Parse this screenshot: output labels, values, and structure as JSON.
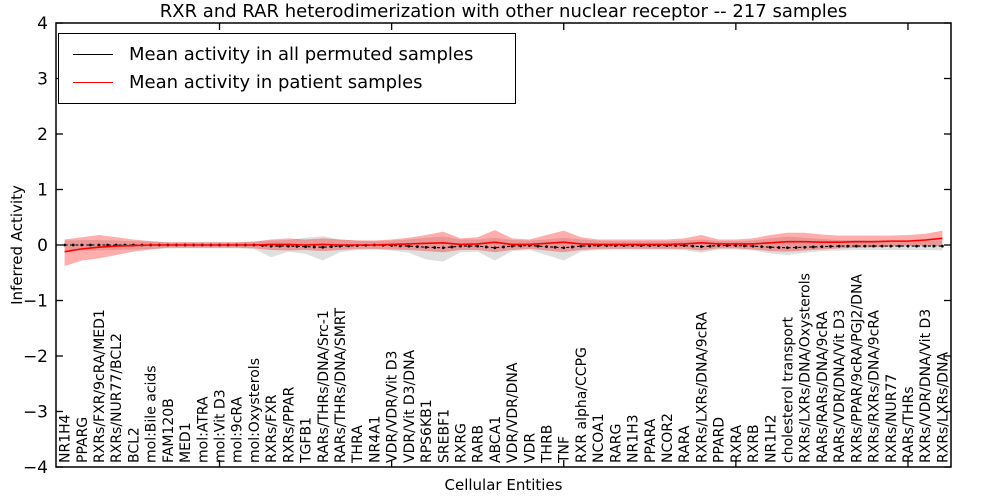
{
  "title": "RXR and RAR heterodimerization with other nuclear receptor -- 217 samples",
  "axes": {
    "xlabel": "Cellular Entities",
    "ylabel": "Inferred Activity"
  },
  "legend": {
    "entries": [
      {
        "label": "Mean activity in all permuted samples",
        "color": "#000000"
      },
      {
        "label": "Mean activity in patient samples",
        "color": "#ff0000"
      }
    ]
  },
  "chart_data": {
    "type": "line",
    "title": "RXR and RAR heterodimerization with other nuclear receptor -- 217 samples",
    "xlabel": "Cellular Entities",
    "ylabel": "Inferred Activity",
    "samples_count": "217",
    "ylim": [
      -4,
      4
    ],
    "grid": false,
    "legend_position": "upper left",
    "y_ticks": [
      -4,
      -3,
      -2,
      -1,
      0,
      1,
      2,
      3,
      4
    ],
    "y_tick_labels": [
      "−4",
      "−3",
      "−2",
      "−1",
      "0",
      "1",
      "2",
      "3",
      "4"
    ],
    "x_major_ticks": [
      10,
      20,
      30,
      40,
      50
    ],
    "categories": [
      "NR1H4",
      "PPARG",
      "RXRs/FXR/9cRA/MED1",
      "RXRs/NUR77/BCL2",
      "BCL2",
      "mol:Bile acids",
      "FAM120B",
      "MED1",
      "mol:ATRA",
      "mol:Vit D3",
      "mol:9cRA",
      "mol:Oxysterols",
      "RXRs/FXR",
      "RXRs/PPAR",
      "TGFB1",
      "RARs/THRs/DNA/Src-1",
      "RARs/THRs/DNA/SMRT",
      "THRA",
      "NR4A1",
      "VDR/VDR/Vit D3",
      "VDR/Vit D3/DNA",
      "RPS6KB1",
      "SREBF1",
      "RXRG",
      "RARB",
      "ABCA1",
      "VDR/VDR/DNA",
      "VDR",
      "THRB",
      "TNF",
      "RXR alpha/CCPG",
      "NCOA1",
      "RARG",
      "NR1H3",
      "PPARA",
      "NCOR2",
      "RARA",
      "RXRs/LXRs/DNA/9cRA",
      "PPARD",
      "RXRA",
      "RXRB",
      "NR1H2",
      "cholesterol transport",
      "RXRs/LXRs/DNA/Oxysterols",
      "RARs/RARs/DNA/9cRA",
      "RARs/VDR/DNA/Vit D3",
      "RXRs/PPAR/9cRA/PGJ2/DNA",
      "RXRs/RXRs/DNA/9cRA",
      "RXRs/NUR77",
      "RARs/THRs",
      "RXRs/VDR/DNA/Vit D3",
      "RXRs/LXRs/DNA"
    ],
    "series": [
      {
        "name": "Mean activity in all permuted samples",
        "color": "#000000",
        "line_style": "dotted",
        "values": [
          0,
          0,
          0,
          0,
          0,
          0,
          0,
          0,
          0,
          0,
          0,
          0,
          -0.02,
          -0.02,
          -0.03,
          -0.04,
          -0.02,
          -0.01,
          0,
          -0.01,
          -0.02,
          -0.04,
          -0.05,
          -0.02,
          -0.02,
          -0.05,
          -0.02,
          -0.01,
          -0.03,
          -0.05,
          -0.02,
          -0.01,
          -0.01,
          -0.01,
          -0.01,
          -0.01,
          -0.01,
          -0.03,
          -0.01,
          -0.01,
          -0.02,
          -0.04,
          -0.05,
          -0.04,
          -0.03,
          -0.02,
          -0.02,
          -0.02,
          -0.02,
          -0.02,
          -0.02,
          -0.02
        ],
        "band": {
          "color": "#808080",
          "opacity": 0.25,
          "upper": [
            0.08,
            0.09,
            0.09,
            0.08,
            0.07,
            0.06,
            0.05,
            0.05,
            0.05,
            0.05,
            0.05,
            0.06,
            0.08,
            0.09,
            0.13,
            0.16,
            0.1,
            0.08,
            0.07,
            0.08,
            0.1,
            0.13,
            0.15,
            0.1,
            0.1,
            0.13,
            0.09,
            0.08,
            0.1,
            0.13,
            0.1,
            0.08,
            0.07,
            0.07,
            0.07,
            0.07,
            0.08,
            0.1,
            0.07,
            0.07,
            0.08,
            0.12,
            0.15,
            0.13,
            0.11,
            0.09,
            0.09,
            0.08,
            0.08,
            0.08,
            0.08,
            0.08
          ],
          "lower": [
            -0.09,
            -0.1,
            -0.1,
            -0.09,
            -0.08,
            -0.07,
            -0.06,
            -0.06,
            -0.06,
            -0.06,
            -0.06,
            -0.07,
            -0.22,
            -0.12,
            -0.16,
            -0.28,
            -0.13,
            -0.09,
            -0.08,
            -0.1,
            -0.14,
            -0.26,
            -0.3,
            -0.13,
            -0.12,
            -0.28,
            -0.11,
            -0.09,
            -0.18,
            -0.28,
            -0.12,
            -0.09,
            -0.08,
            -0.08,
            -0.08,
            -0.08,
            -0.09,
            -0.14,
            -0.08,
            -0.08,
            -0.1,
            -0.15,
            -0.18,
            -0.14,
            -0.11,
            -0.1,
            -0.09,
            -0.09,
            -0.09,
            -0.09,
            -0.09,
            -0.1
          ]
        }
      },
      {
        "name": "Mean activity in patient samples",
        "color": "#ff0000",
        "line_style": "solid",
        "values": [
          -0.12,
          -0.07,
          -0.04,
          -0.02,
          -0.01,
          0,
          0,
          0,
          0,
          0,
          0,
          0,
          0.01,
          0.01,
          0,
          0.01,
          0,
          0,
          0,
          0.01,
          0.02,
          0.03,
          0.04,
          0.01,
          0.02,
          0.05,
          0.01,
          0.01,
          0.03,
          0.05,
          0.02,
          0.01,
          0.01,
          0.01,
          0.01,
          0.01,
          0.02,
          0.04,
          0.02,
          0.02,
          0.02,
          0.04,
          0.06,
          0.06,
          0.05,
          0.05,
          0.06,
          0.06,
          0.07,
          0.07,
          0.09,
          0.12
        ],
        "band": {
          "color": "#ff0000",
          "opacity": 0.32,
          "upper": [
            0.1,
            0.14,
            0.18,
            0.14,
            0.1,
            0.07,
            0.05,
            0.05,
            0.05,
            0.05,
            0.05,
            0.06,
            0.1,
            0.12,
            0.1,
            0.12,
            0.1,
            0.08,
            0.08,
            0.1,
            0.13,
            0.18,
            0.24,
            0.12,
            0.14,
            0.27,
            0.12,
            0.1,
            0.18,
            0.26,
            0.14,
            0.1,
            0.1,
            0.1,
            0.1,
            0.1,
            0.12,
            0.18,
            0.1,
            0.1,
            0.12,
            0.18,
            0.22,
            0.22,
            0.19,
            0.17,
            0.17,
            0.17,
            0.17,
            0.18,
            0.2,
            0.26
          ],
          "lower": [
            -0.38,
            -0.28,
            -0.24,
            -0.18,
            -0.12,
            -0.08,
            -0.05,
            -0.05,
            -0.05,
            -0.05,
            -0.05,
            -0.06,
            -0.09,
            -0.1,
            -0.09,
            -0.11,
            -0.09,
            -0.07,
            -0.07,
            -0.08,
            -0.09,
            -0.11,
            -0.13,
            -0.09,
            -0.09,
            -0.13,
            -0.09,
            -0.07,
            -0.1,
            -0.13,
            -0.09,
            -0.07,
            -0.07,
            -0.07,
            -0.07,
            -0.07,
            -0.07,
            -0.1,
            -0.06,
            -0.06,
            -0.08,
            -0.11,
            -0.12,
            -0.1,
            -0.08,
            -0.06,
            -0.05,
            -0.04,
            -0.03,
            -0.02,
            -0.01,
            -0.02
          ]
        }
      }
    ]
  }
}
